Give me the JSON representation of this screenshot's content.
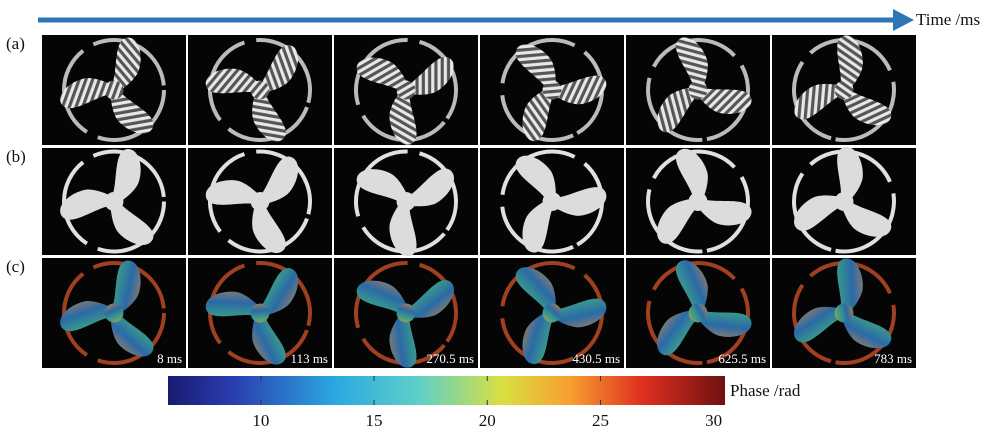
{
  "header": {
    "axis_label": "Time /ms"
  },
  "rows": [
    {
      "label": "(a)"
    },
    {
      "label": "(b)"
    },
    {
      "label": "(c)"
    }
  ],
  "time_labels": [
    "8 ms",
    "113 ms",
    "270.5 ms",
    "430.5 ms",
    "625.5 ms",
    "783 ms"
  ],
  "colorbar": {
    "label": "Phase /rad",
    "lim": [
      5.9,
      30.5
    ],
    "ticks": [
      10,
      15,
      20,
      25,
      30
    ]
  }
}
